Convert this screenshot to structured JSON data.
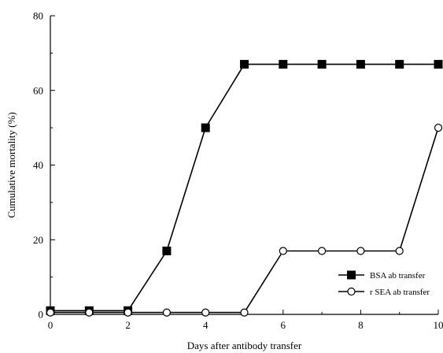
{
  "chart_data": {
    "type": "line",
    "title": "",
    "xlabel": "Days after antibody transfer",
    "ylabel": "Cumulative mortality (%)",
    "xlim": [
      0,
      10
    ],
    "ylim": [
      0,
      80
    ],
    "x_ticks": [
      "0",
      "2",
      "4",
      "6",
      "8",
      "10"
    ],
    "y_ticks": [
      "0",
      "20",
      "40",
      "60",
      "80"
    ],
    "grid": false,
    "legend_position": "bottom-right",
    "series": [
      {
        "name": "BSA ab transfer",
        "marker": "filled-square",
        "color": "#000000",
        "x": [
          0,
          1,
          2,
          3,
          4,
          5,
          6,
          7,
          8,
          9,
          10
        ],
        "y": [
          1,
          1,
          1,
          17,
          50,
          67,
          67,
          67,
          67,
          67,
          67
        ]
      },
      {
        "name": "r SEA ab transfer",
        "marker": "open-circle",
        "color": "#000000",
        "x": [
          0,
          1,
          2,
          3,
          4,
          5,
          6,
          7,
          8,
          9,
          10
        ],
        "y": [
          0.5,
          0.5,
          0.5,
          0.5,
          0.5,
          0.5,
          17,
          17,
          17,
          17,
          50
        ]
      }
    ]
  }
}
